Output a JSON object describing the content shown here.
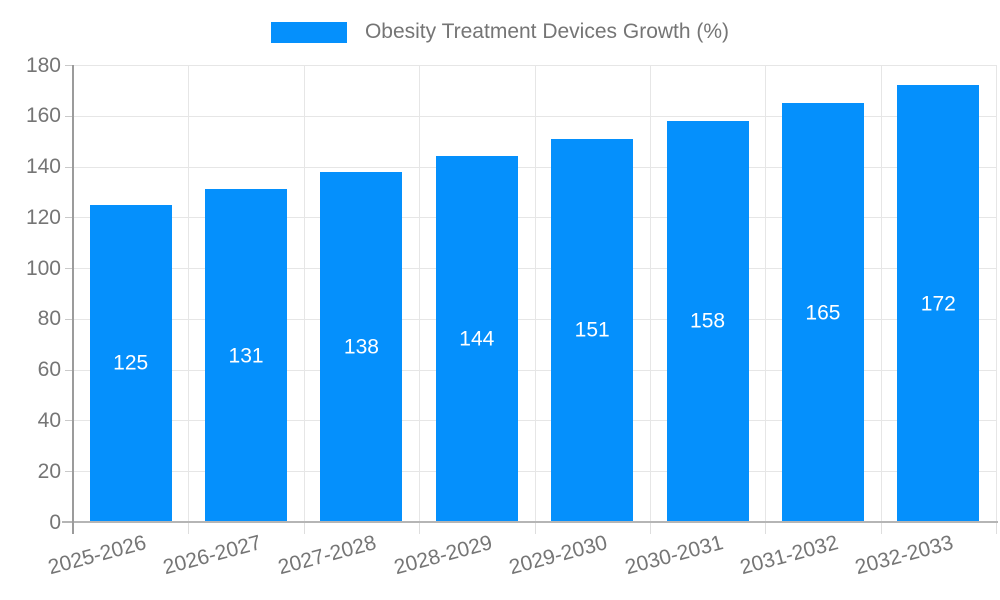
{
  "legend": {
    "label": "Obesity Treatment Devices Growth (%)"
  },
  "chart_data": {
    "type": "bar",
    "title": "Obesity Treatment Devices Growth (%)",
    "categories": [
      "2025-2026",
      "2026-2027",
      "2027-2028",
      "2028-2029",
      "2029-2030",
      "2030-2031",
      "2031-2032",
      "2032-2033"
    ],
    "values": [
      125,
      131,
      138,
      144,
      151,
      158,
      165,
      172
    ],
    "xlabel": "",
    "ylabel": "",
    "ylim": [
      0,
      180
    ],
    "yticks": [
      0,
      20,
      40,
      60,
      80,
      100,
      120,
      140,
      160,
      180
    ],
    "grid": "on",
    "legend_position": "top-center",
    "bar_color": "#0590fc",
    "value_label_color": "#ffffff",
    "axis_text_color": "#757575"
  }
}
